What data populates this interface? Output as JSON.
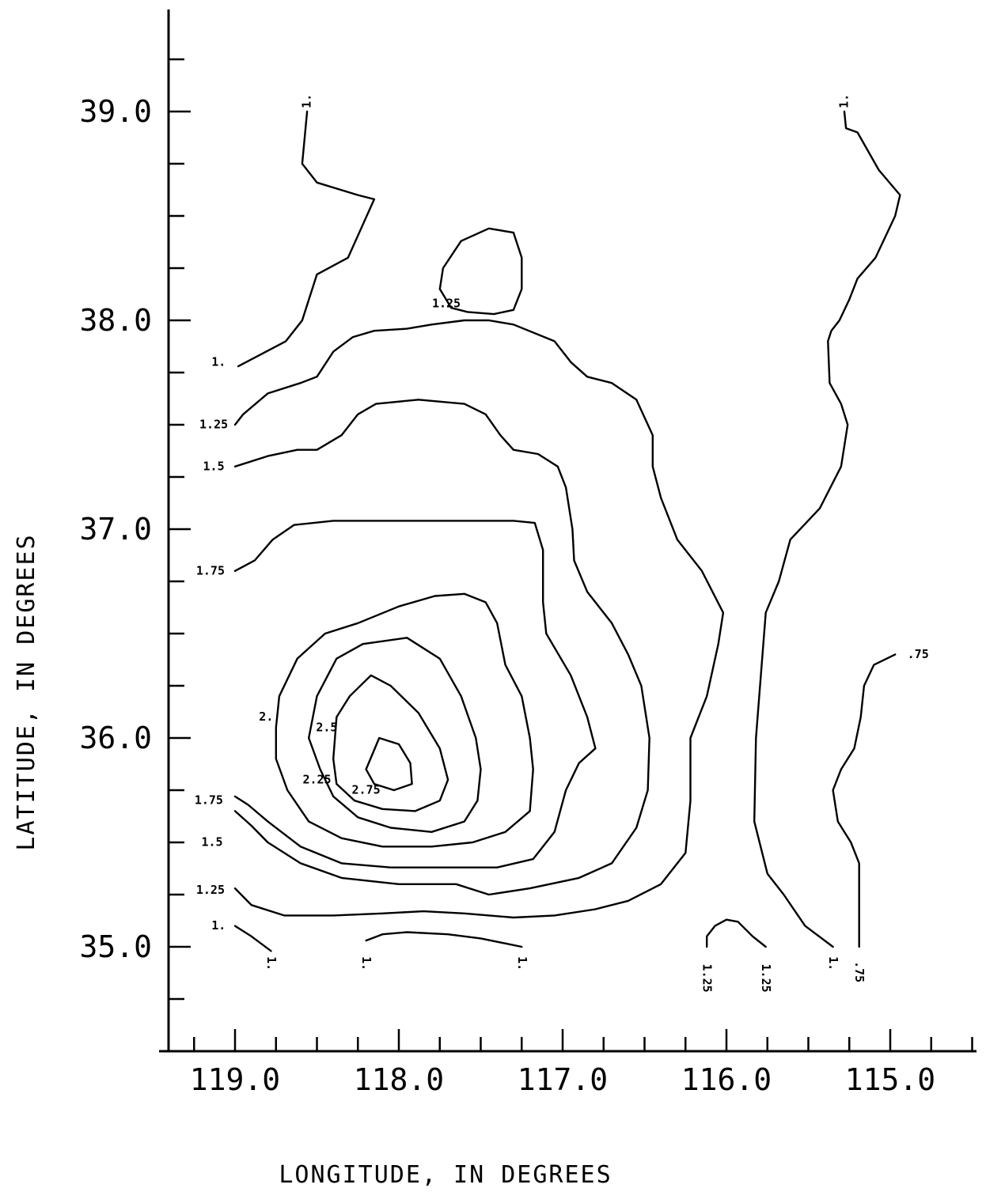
{
  "chart_data": {
    "type": "contour",
    "xlabel": "LONGITUDE, IN DEGREES",
    "ylabel": "LATITUDE, IN DEGREES",
    "xlim": [
      119.45,
      114.27
    ],
    "ylim": [
      34.5,
      39.5
    ],
    "x_ticks": [
      119.0,
      118.0,
      117.0,
      116.0,
      115.0
    ],
    "x_tick_labels": [
      "119.0",
      "118.0",
      "117.0",
      "116.0",
      "115.0"
    ],
    "x_minor_ticks": [
      119.25,
      118.75,
      118.5,
      118.25,
      117.75,
      117.5,
      117.25,
      116.75,
      116.5,
      116.25,
      115.75,
      115.5,
      115.25,
      114.75,
      114.5
    ],
    "y_ticks": [
      35.0,
      36.0,
      37.0,
      38.0,
      39.0
    ],
    "y_tick_labels": [
      "35.0",
      "36.0",
      "37.0",
      "38.0",
      "39.0"
    ],
    "y_minor_ticks": [
      34.75,
      35.25,
      35.5,
      35.75,
      36.25,
      36.5,
      36.75,
      37.25,
      37.5,
      37.75,
      38.25,
      38.5,
      38.75,
      39.25
    ],
    "contours": [
      {
        "level": 1.0,
        "label": "1.",
        "points": [
          [
            118.56,
            39.0
          ],
          [
            118.59,
            38.75
          ],
          [
            118.5,
            38.66
          ],
          [
            118.25,
            38.6
          ],
          [
            118.15,
            38.58
          ],
          [
            118.31,
            38.3
          ],
          [
            118.5,
            38.22
          ],
          [
            118.59,
            38.0
          ],
          [
            118.69,
            37.9
          ],
          [
            118.98,
            37.78
          ]
        ]
      },
      {
        "level": 1.0,
        "label": "1.",
        "points": [
          [
            115.28,
            39.0
          ],
          [
            115.27,
            38.92
          ],
          [
            115.2,
            38.9
          ],
          [
            115.07,
            38.72
          ],
          [
            114.94,
            38.6
          ],
          [
            114.97,
            38.5
          ],
          [
            115.09,
            38.3
          ],
          [
            115.2,
            38.2
          ],
          [
            115.25,
            38.1
          ],
          [
            115.31,
            38.0
          ],
          [
            115.36,
            37.95
          ],
          [
            115.38,
            37.9
          ],
          [
            115.37,
            37.7
          ],
          [
            115.3,
            37.6
          ],
          [
            115.26,
            37.5
          ],
          [
            115.3,
            37.3
          ],
          [
            115.43,
            37.1
          ],
          [
            115.61,
            36.95
          ],
          [
            115.68,
            36.75
          ],
          [
            115.76,
            36.6
          ],
          [
            115.82,
            36.0
          ],
          [
            115.83,
            35.6
          ],
          [
            115.75,
            35.35
          ],
          [
            115.65,
            35.25
          ],
          [
            115.52,
            35.1
          ],
          [
            115.35,
            35.0
          ]
        ]
      },
      {
        "level": 1.0,
        "label": "1.",
        "points": [
          [
            119.0,
            35.1
          ],
          [
            118.9,
            35.05
          ],
          [
            118.78,
            34.98
          ]
        ]
      },
      {
        "level": 1.0,
        "label": "1.",
        "points": [
          [
            118.2,
            35.03
          ],
          [
            118.1,
            35.06
          ],
          [
            117.95,
            35.07
          ],
          [
            117.7,
            35.06
          ],
          [
            117.5,
            35.04
          ],
          [
            117.25,
            35.0
          ]
        ]
      },
      {
        "level": 1.25,
        "label": "1.25",
        "points": [
          [
            119.0,
            37.5
          ],
          [
            118.95,
            37.55
          ],
          [
            118.8,
            37.65
          ],
          [
            118.6,
            37.7
          ],
          [
            118.5,
            37.73
          ],
          [
            118.4,
            37.85
          ],
          [
            118.28,
            37.92
          ],
          [
            118.15,
            37.95
          ],
          [
            117.95,
            37.96
          ],
          [
            117.8,
            37.98
          ],
          [
            117.6,
            38.0
          ],
          [
            117.45,
            38.0
          ],
          [
            117.3,
            37.98
          ],
          [
            117.05,
            37.9
          ],
          [
            116.95,
            37.8
          ],
          [
            116.85,
            37.73
          ],
          [
            116.7,
            37.7
          ],
          [
            116.55,
            37.62
          ],
          [
            116.45,
            37.45
          ],
          [
            116.45,
            37.3
          ],
          [
            116.4,
            37.15
          ],
          [
            116.3,
            36.95
          ],
          [
            116.15,
            36.8
          ],
          [
            116.02,
            36.6
          ],
          [
            116.05,
            36.45
          ],
          [
            116.12,
            36.2
          ],
          [
            116.22,
            36.0
          ],
          [
            116.22,
            35.7
          ],
          [
            116.25,
            35.45
          ],
          [
            116.4,
            35.3
          ],
          [
            116.6,
            35.22
          ],
          [
            116.8,
            35.18
          ],
          [
            117.05,
            35.15
          ],
          [
            117.3,
            35.14
          ],
          [
            117.6,
            35.16
          ],
          [
            117.85,
            35.17
          ],
          [
            118.1,
            35.16
          ],
          [
            118.4,
            35.15
          ],
          [
            118.7,
            35.15
          ],
          [
            118.9,
            35.2
          ],
          [
            119.0,
            35.28
          ]
        ]
      },
      {
        "level": 1.25,
        "label": "1.25",
        "points": [
          [
            117.68,
            38.06
          ],
          [
            117.75,
            38.15
          ],
          [
            117.73,
            38.25
          ],
          [
            117.62,
            38.38
          ],
          [
            117.45,
            38.44
          ],
          [
            117.3,
            38.42
          ],
          [
            117.25,
            38.3
          ],
          [
            117.25,
            38.15
          ],
          [
            117.3,
            38.05
          ],
          [
            117.42,
            38.03
          ],
          [
            117.58,
            38.04
          ],
          [
            117.68,
            38.06
          ]
        ]
      },
      {
        "level": 1.25,
        "label": "1.25",
        "points": [
          [
            116.12,
            35.0
          ],
          [
            116.12,
            35.05
          ],
          [
            116.07,
            35.1
          ],
          [
            116.0,
            35.13
          ],
          [
            115.93,
            35.12
          ],
          [
            115.84,
            35.05
          ],
          [
            115.76,
            35.0
          ]
        ]
      },
      {
        "level": 1.5,
        "label": "1.5",
        "points": [
          [
            119.0,
            37.3
          ],
          [
            118.8,
            37.35
          ],
          [
            118.62,
            37.38
          ],
          [
            118.5,
            37.38
          ],
          [
            118.35,
            37.45
          ],
          [
            118.25,
            37.55
          ],
          [
            118.14,
            37.6
          ],
          [
            117.88,
            37.62
          ],
          [
            117.6,
            37.6
          ],
          [
            117.47,
            37.55
          ],
          [
            117.38,
            37.45
          ],
          [
            117.3,
            37.38
          ],
          [
            117.15,
            37.36
          ],
          [
            117.03,
            37.3
          ],
          [
            116.98,
            37.2
          ],
          [
            116.94,
            37.0
          ],
          [
            116.93,
            36.85
          ],
          [
            116.85,
            36.7
          ],
          [
            116.7,
            36.55
          ],
          [
            116.6,
            36.4
          ],
          [
            116.52,
            36.25
          ],
          [
            116.47,
            36.0
          ],
          [
            116.48,
            35.75
          ],
          [
            116.55,
            35.57
          ],
          [
            116.7,
            35.4
          ],
          [
            116.9,
            35.33
          ],
          [
            117.2,
            35.28
          ],
          [
            117.45,
            35.25
          ],
          [
            117.65,
            35.3
          ],
          [
            118.0,
            35.3
          ],
          [
            118.35,
            35.33
          ],
          [
            118.6,
            35.4
          ],
          [
            118.8,
            35.5
          ],
          [
            118.9,
            35.58
          ],
          [
            119.0,
            35.65
          ]
        ]
      },
      {
        "level": 1.75,
        "label": "1.75",
        "points": [
          [
            119.0,
            36.8
          ],
          [
            118.88,
            36.85
          ],
          [
            118.77,
            36.95
          ],
          [
            118.64,
            37.02
          ],
          [
            118.4,
            37.04
          ],
          [
            118.05,
            37.04
          ],
          [
            117.72,
            37.04
          ],
          [
            117.3,
            37.04
          ],
          [
            117.17,
            37.03
          ],
          [
            117.12,
            36.9
          ],
          [
            117.12,
            36.65
          ],
          [
            117.1,
            36.5
          ],
          [
            116.95,
            36.3
          ],
          [
            116.85,
            36.1
          ],
          [
            116.8,
            35.95
          ],
          [
            116.9,
            35.88
          ],
          [
            116.98,
            35.75
          ],
          [
            117.05,
            35.55
          ],
          [
            117.18,
            35.42
          ],
          [
            117.4,
            35.38
          ],
          [
            117.75,
            35.38
          ],
          [
            118.05,
            35.38
          ],
          [
            118.35,
            35.4
          ],
          [
            118.6,
            35.48
          ],
          [
            118.8,
            35.6
          ],
          [
            118.92,
            35.68
          ],
          [
            119.0,
            35.72
          ]
        ]
      },
      {
        "level": 2.0,
        "label": "2.",
        "points": [
          [
            118.75,
            36.05
          ],
          [
            118.73,
            36.2
          ],
          [
            118.62,
            36.38
          ],
          [
            118.45,
            36.5
          ],
          [
            118.25,
            36.55
          ],
          [
            118.0,
            36.63
          ],
          [
            117.78,
            36.68
          ],
          [
            117.6,
            36.69
          ],
          [
            117.47,
            36.65
          ],
          [
            117.4,
            36.55
          ],
          [
            117.35,
            36.35
          ],
          [
            117.25,
            36.2
          ],
          [
            117.2,
            36.0
          ],
          [
            117.18,
            35.85
          ],
          [
            117.2,
            35.65
          ],
          [
            117.35,
            35.55
          ],
          [
            117.55,
            35.5
          ],
          [
            117.8,
            35.48
          ],
          [
            118.1,
            35.48
          ],
          [
            118.35,
            35.52
          ],
          [
            118.55,
            35.6
          ],
          [
            118.68,
            35.75
          ],
          [
            118.75,
            35.9
          ],
          [
            118.75,
            36.05
          ]
        ]
      },
      {
        "level": 2.25,
        "label": "2.25",
        "points": [
          [
            118.48,
            35.85
          ],
          [
            118.55,
            36.0
          ],
          [
            118.5,
            36.2
          ],
          [
            118.38,
            36.38
          ],
          [
            118.22,
            36.45
          ],
          [
            117.95,
            36.48
          ],
          [
            117.75,
            36.38
          ],
          [
            117.62,
            36.2
          ],
          [
            117.53,
            36.0
          ],
          [
            117.5,
            35.85
          ],
          [
            117.52,
            35.7
          ],
          [
            117.6,
            35.6
          ],
          [
            117.8,
            35.55
          ],
          [
            118.05,
            35.57
          ],
          [
            118.25,
            35.62
          ],
          [
            118.4,
            35.72
          ],
          [
            118.48,
            35.85
          ]
        ]
      },
      {
        "level": 2.5,
        "label": "2.5",
        "points": [
          [
            118.4,
            35.9
          ],
          [
            118.38,
            36.1
          ],
          [
            118.3,
            36.2
          ],
          [
            118.17,
            36.3
          ],
          [
            118.05,
            36.25
          ],
          [
            117.88,
            36.12
          ],
          [
            117.75,
            35.95
          ],
          [
            117.7,
            35.8
          ],
          [
            117.75,
            35.7
          ],
          [
            117.9,
            35.65
          ],
          [
            118.1,
            35.66
          ],
          [
            118.27,
            35.7
          ],
          [
            118.38,
            35.78
          ],
          [
            118.4,
            35.9
          ]
        ]
      },
      {
        "level": 2.75,
        "label": "2.75",
        "points": [
          [
            118.2,
            35.85
          ],
          [
            118.12,
            36.0
          ],
          [
            118.0,
            35.97
          ],
          [
            117.93,
            35.88
          ],
          [
            117.92,
            35.78
          ],
          [
            118.03,
            35.75
          ],
          [
            118.15,
            35.78
          ],
          [
            118.2,
            35.85
          ]
        ]
      },
      {
        "level": 0.75,
        "label": ".75",
        "points": [
          [
            114.97,
            36.4
          ],
          [
            115.1,
            36.35
          ],
          [
            115.16,
            36.25
          ],
          [
            115.18,
            36.1
          ],
          [
            115.22,
            35.95
          ],
          [
            115.3,
            35.85
          ],
          [
            115.35,
            35.75
          ],
          [
            115.32,
            35.6
          ],
          [
            115.24,
            35.5
          ],
          [
            115.19,
            35.4
          ],
          [
            115.19,
            35.0
          ]
        ]
      }
    ],
    "level_labels": [
      {
        "text": "1.",
        "x": 118.56,
        "y": 39.05,
        "rotate": -90
      },
      {
        "text": "1.",
        "x": 115.28,
        "y": 39.05,
        "rotate": -90
      },
      {
        "text": "1.",
        "x": 119.1,
        "y": 37.8
      },
      {
        "text": "1.25",
        "x": 117.71,
        "y": 38.08
      },
      {
        "text": "1.25",
        "x": 119.13,
        "y": 37.5
      },
      {
        "text": "1.5",
        "x": 119.13,
        "y": 37.3
      },
      {
        "text": "1.75",
        "x": 119.15,
        "y": 36.8
      },
      {
        "text": "2.",
        "x": 118.81,
        "y": 36.1
      },
      {
        "text": "2.5",
        "x": 118.44,
        "y": 36.05
      },
      {
        "text": "2.25",
        "x": 118.5,
        "y": 35.8
      },
      {
        "text": "2.75",
        "x": 118.2,
        "y": 35.75
      },
      {
        "text": "1.75",
        "x": 119.16,
        "y": 35.7
      },
      {
        "text": "1.5",
        "x": 119.14,
        "y": 35.5
      },
      {
        "text": "1.25",
        "x": 119.15,
        "y": 35.27
      },
      {
        "text": "1.",
        "x": 119.1,
        "y": 35.1
      },
      {
        "text": "1.",
        "x": 118.78,
        "y": 34.92,
        "rotate": 90
      },
      {
        "text": "1.",
        "x": 118.2,
        "y": 34.92,
        "rotate": 90
      },
      {
        "text": "1.",
        "x": 117.25,
        "y": 34.92,
        "rotate": 90
      },
      {
        "text": "1.25",
        "x": 116.12,
        "y": 34.85,
        "rotate": 90
      },
      {
        "text": "1.25",
        "x": 115.76,
        "y": 34.85,
        "rotate": 90
      },
      {
        "text": "1.",
        "x": 115.35,
        "y": 34.92,
        "rotate": 90
      },
      {
        "text": ".75",
        "x": 115.19,
        "y": 34.88,
        "rotate": 90
      },
      {
        "text": ".75",
        "x": 114.83,
        "y": 36.4
      }
    ]
  }
}
